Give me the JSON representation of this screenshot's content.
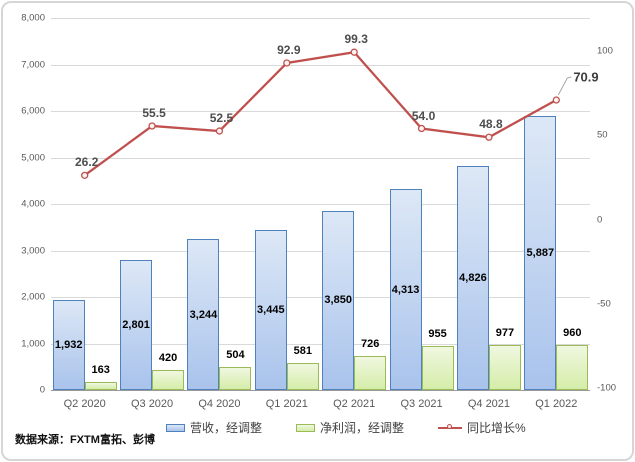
{
  "frame": {
    "border_color": "#d6d6d6",
    "background": "#ffffff"
  },
  "chart_data": {
    "type": "combo",
    "categories": [
      "Q2 2020",
      "Q3 2020",
      "Q4 2020",
      "Q1 2021",
      "Q2 2021",
      "Q3 2021",
      "Q4 2021",
      "Q1 2022"
    ],
    "series": [
      {
        "name": "营收，经调整",
        "type": "bar",
        "axis": "left",
        "values": [
          1932,
          2801,
          3244,
          3445,
          3850,
          4313,
          4826,
          5887
        ],
        "labels": [
          "1,932",
          "2,801",
          "3,244",
          "3,445",
          "3,850",
          "4,313",
          "4,826",
          "5,887"
        ],
        "border_color": "#4f81bd",
        "fill_top": "#dde8f6",
        "fill_bottom": "#a9c3ec"
      },
      {
        "name": "净利润，经调整",
        "type": "bar",
        "axis": "left",
        "values": [
          163,
          420,
          504,
          581,
          726,
          955,
          977,
          960
        ],
        "labels": [
          "163",
          "420",
          "504",
          "581",
          "726",
          "955",
          "977",
          "960"
        ],
        "border_color": "#9bbb59",
        "fill_top": "#f0f7e0",
        "fill_bottom": "#d5eda9"
      },
      {
        "name": "同比增长%",
        "type": "line",
        "axis": "right",
        "values": [
          26.2,
          55.5,
          52.5,
          92.9,
          99.3,
          54.0,
          48.8,
          70.9
        ],
        "labels": [
          "26.2",
          "55.5",
          "52.5",
          "92.9",
          "99.3",
          "54.0",
          "48.8",
          "70.9"
        ],
        "color": "#c0504d",
        "marker_fill": "#fdf3f2"
      }
    ],
    "left_axis": {
      "min": 0,
      "max": 8000,
      "step": 1000,
      "tick_labels": [
        "0",
        "1,000",
        "2,000",
        "3,000",
        "4,000",
        "5,000",
        "6,000",
        "7,000",
        "8,000"
      ]
    },
    "right_axis": {
      "values": [
        100,
        50,
        0,
        -50,
        -100
      ],
      "tick_labels": [
        "100",
        "50",
        "0",
        "-50",
        "-100"
      ]
    },
    "grid": true,
    "legend_position": "bottom",
    "grid_color": "#d9d9d9",
    "axis_color": "#9a9a9a"
  },
  "source": {
    "label": "数据来源：FXTM富拓、彭博"
  }
}
